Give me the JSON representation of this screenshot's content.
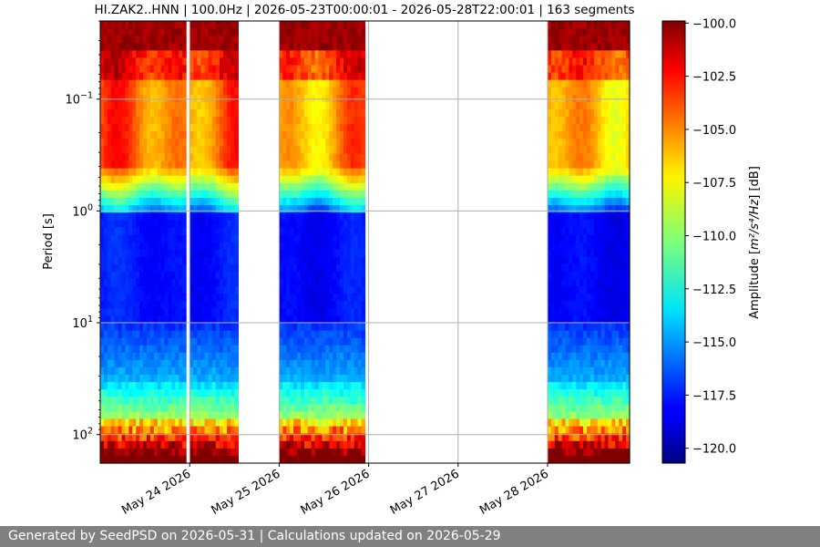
{
  "chart_data": {
    "type": "heatmap",
    "title": "HI.ZAK2..HNN | 100.0Hz | 2026-05-23T00:00:01 - 2026-05-28T22:00:01 | 163 segments",
    "ylabel": "Period [s]",
    "y_scale": "log",
    "y_inverted": true,
    "y_ticks": [
      {
        "value": 0.1,
        "base": "10",
        "exp": "−1"
      },
      {
        "value": 1,
        "base": "10",
        "exp": "0"
      },
      {
        "value": 10,
        "base": "10",
        "exp": "1"
      },
      {
        "value": 100,
        "base": "10",
        "exp": "2"
      }
    ],
    "ylim": [
      0.02,
      180
    ],
    "x_type": "date",
    "xlim": [
      "2026-05-23T00:00:01",
      "2026-05-28T22:00:01"
    ],
    "x_ticks": [
      {
        "value": "2026-05-24",
        "label": "May 24 2026"
      },
      {
        "value": "2026-05-25",
        "label": "May 25 2026"
      },
      {
        "value": "2026-05-26",
        "label": "May 26 2026"
      },
      {
        "value": "2026-05-27",
        "label": "May 27 2026"
      },
      {
        "value": "2026-05-28",
        "label": "May 28 2026"
      }
    ],
    "grid": true,
    "data_segments": [
      {
        "start": "2026-05-23T00:00:01",
        "end": "2026-05-23T23:00:00"
      },
      {
        "start": "2026-05-24T00:00:00",
        "end": "2026-05-24T13:00:00"
      },
      {
        "start": "2026-05-25T00:00:00",
        "end": "2026-05-25T23:00:00"
      },
      {
        "start": "2026-05-28T00:00:00",
        "end": "2026-05-28T22:00:01"
      }
    ],
    "colorbar": {
      "label_prefix": "Amplitude [",
      "label_math": "m²/s⁴/Hz",
      "label_suffix": "] [dB]",
      "range": [
        -120.7,
        -99.9
      ],
      "colormap": "jet",
      "ticks": [
        {
          "value": -100,
          "label": "−100.0"
        },
        {
          "value": -102.5,
          "label": "−102.5"
        },
        {
          "value": -105,
          "label": "−105.0"
        },
        {
          "value": -107.5,
          "label": "−107.5"
        },
        {
          "value": -110,
          "label": "−110.0"
        },
        {
          "value": -112.5,
          "label": "−112.5"
        },
        {
          "value": -115,
          "label": "−115.0"
        },
        {
          "value": -117.5,
          "label": "−117.5"
        },
        {
          "value": -120,
          "label": "−120.0"
        }
      ]
    }
  },
  "footer": {
    "text": "Generated by SeedPSD on 2026-05-31 | Calculations updated on 2026-05-29"
  }
}
